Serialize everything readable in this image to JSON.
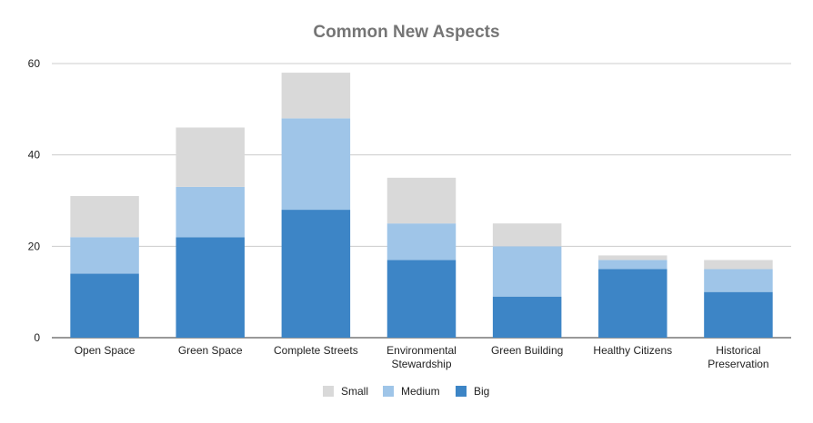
{
  "chart_data": {
    "type": "bar",
    "stacked": true,
    "title": "Common New Aspects",
    "xlabel": "",
    "ylabel": "",
    "categories": [
      "Open Space",
      "Green Space",
      "Complete Streets",
      "Environmental Stewardship",
      "Green Building",
      "Healthy Citizens",
      "Historical Preservation"
    ],
    "category_label_lines": [
      [
        "Open Space"
      ],
      [
        "Green Space"
      ],
      [
        "Complete Streets"
      ],
      [
        "Environmental",
        "Stewardship"
      ],
      [
        "Green Building"
      ],
      [
        "Healthy Citizens"
      ],
      [
        "Historical",
        "Preservation"
      ]
    ],
    "series": [
      {
        "name": "Big",
        "color": "#3d85c6",
        "values": [
          14,
          22,
          28,
          17,
          9,
          15,
          10
        ]
      },
      {
        "name": "Medium",
        "color": "#9fc5e8",
        "values": [
          8,
          11,
          20,
          8,
          11,
          2,
          5
        ]
      },
      {
        "name": "Small",
        "color": "#d9d9d9",
        "values": [
          9,
          13,
          10,
          10,
          5,
          1,
          2
        ]
      }
    ],
    "legend_order": [
      "Small",
      "Medium",
      "Big"
    ],
    "legend_position": "bottom",
    "ylim": [
      0,
      60
    ],
    "yticks": [
      0,
      20,
      40,
      60
    ],
    "grid": true
  }
}
